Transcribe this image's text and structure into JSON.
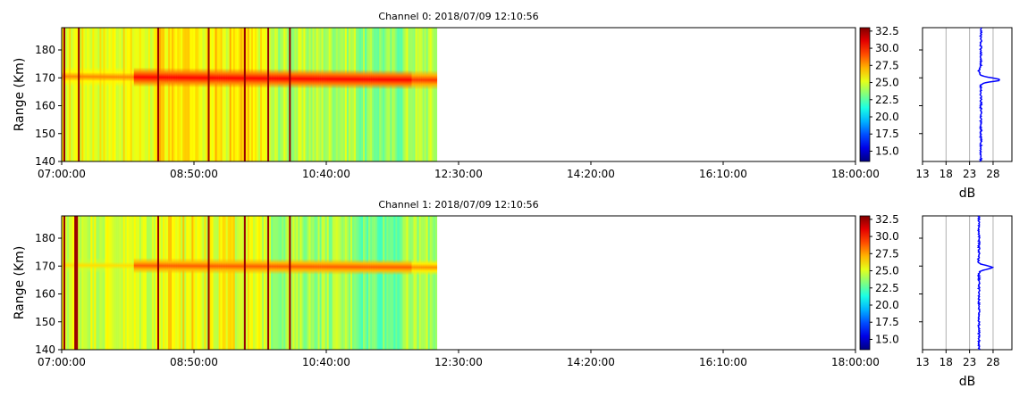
{
  "figure": {
    "panels": [
      {
        "title": "Channel 0: 2018/07/09 12:10:56",
        "ylabel": "Range (Km)",
        "x_ticks": [
          "07:00:00",
          "08:50:00",
          "10:40:00",
          "12:30:00",
          "14:20:00",
          "16:10:00",
          "18:00:00"
        ],
        "y_ticks": [
          "140",
          "150",
          "160",
          "170",
          "180"
        ],
        "colorbar_ticks": [
          "15.0",
          "17.5",
          "20.0",
          "22.5",
          "25.0",
          "27.5",
          "30.0",
          "32.5"
        ],
        "profile_xlabel": "dB",
        "profile_x_ticks": [
          "13",
          "18",
          "23",
          "28"
        ]
      },
      {
        "title": "Channel 1: 2018/07/09 12:10:56",
        "ylabel": "Range (Km)",
        "x_ticks": [
          "07:00:00",
          "08:50:00",
          "10:40:00",
          "12:30:00",
          "14:20:00",
          "16:10:00",
          "18:00:00"
        ],
        "y_ticks": [
          "140",
          "150",
          "160",
          "170",
          "180"
        ],
        "colorbar_ticks": [
          "15.0",
          "17.5",
          "20.0",
          "22.5",
          "25.0",
          "27.5",
          "30.0",
          "32.5"
        ],
        "profile_xlabel": "dB",
        "profile_x_ticks": [
          "13",
          "18",
          "23",
          "28"
        ]
      }
    ]
  },
  "chart_data": [
    {
      "type": "heatmap",
      "title": "Channel 0: 2018/07/09 12:10:56",
      "xlabel": "",
      "ylabel": "Range (Km)",
      "x_range_minutes_from": "07:00:00",
      "xlim": [
        "07:00:00",
        "18:00:00"
      ],
      "data_extent_x": [
        "07:00:00",
        "12:12:00"
      ],
      "ylim": [
        140,
        188
      ],
      "colormap": "jet",
      "clim": [
        13.5,
        33
      ],
      "background_db": 25.5,
      "background_late_db": 24.3,
      "background_shift_time": "09:52:00",
      "band": {
        "center_km": 170.5,
        "width_km": 3.5,
        "peak_db": 30.5,
        "end_center_km": 169.2
      },
      "strong_columns": [
        "07:01:00",
        "07:13:00",
        "08:20:00",
        "09:02:00",
        "09:31:00",
        "09:51:00",
        "10:09:00"
      ],
      "grid": false,
      "profile": {
        "type": "line",
        "xlabel": "dB",
        "xlim": [
          13,
          32
        ],
        "baseline_db": 25.4,
        "peak_db": 29.5,
        "peak_range_km": 169.3,
        "dip_db": 25.0,
        "dip_range_km": 172.5,
        "grid_x": [
          18,
          23,
          28
        ]
      }
    },
    {
      "type": "heatmap",
      "title": "Channel 1: 2018/07/09 12:10:56",
      "xlabel": "",
      "ylabel": "Range (Km)",
      "xlim": [
        "07:00:00",
        "18:00:00"
      ],
      "data_extent_x": [
        "07:00:00",
        "12:12:00"
      ],
      "ylim": [
        140,
        188
      ],
      "colormap": "jet",
      "clim": [
        13.5,
        33
      ],
      "background_db": 25.0,
      "background_late_db": 24.0,
      "background_shift_time": "09:52:00",
      "band": {
        "center_km": 170.3,
        "width_km": 2.8,
        "peak_db": 28.8,
        "end_center_km": 169.5
      },
      "strong_columns": [
        "07:01:00",
        "07:11:00",
        "07:12:00",
        "08:20:00",
        "09:01:00",
        "09:32:00",
        "09:51:00",
        "10:09:00"
      ],
      "grid": false,
      "profile": {
        "type": "line",
        "xlabel": "dB",
        "xlim": [
          13,
          32
        ],
        "baseline_db": 25.0,
        "peak_db": 27.8,
        "peak_range_km": 169.5,
        "dip_db": 24.9,
        "dip_range_km": 172.0,
        "grid_x": [
          18,
          23,
          28
        ]
      }
    }
  ]
}
